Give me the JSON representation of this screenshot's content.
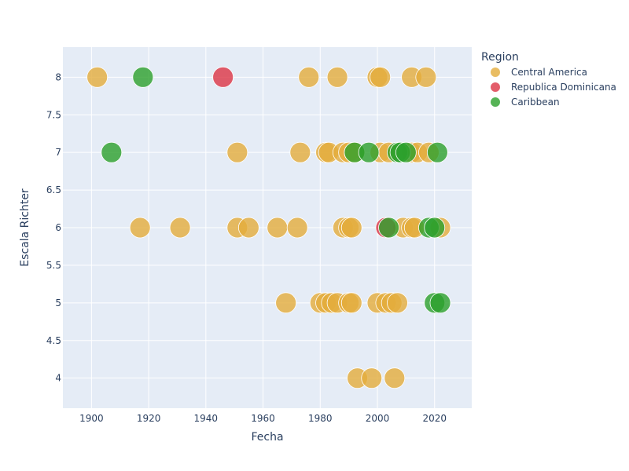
{
  "chart_data": {
    "type": "scatter",
    "title": "",
    "xlabel": "Fecha",
    "ylabel": "Escala Richter",
    "xlim": [
      1890,
      2033
    ],
    "ylim": [
      3.6,
      8.4
    ],
    "x_ticks": [
      1900,
      1920,
      1940,
      1960,
      1980,
      2000,
      2020
    ],
    "y_ticks": [
      4,
      4.5,
      5,
      5.5,
      6,
      6.5,
      7,
      7.5,
      8
    ],
    "y_tick_labels": [
      "4",
      "4.5",
      "5",
      "5.5",
      "6",
      "6.5",
      "7",
      "7.5",
      "8"
    ],
    "grid": true,
    "legend_position": "top-right",
    "legend_title": "Region",
    "series": [
      {
        "name": "Central America",
        "color": "#e3ac3c",
        "points": [
          {
            "x": 1902,
            "y": 8
          },
          {
            "x": 1976,
            "y": 8
          },
          {
            "x": 1986,
            "y": 8
          },
          {
            "x": 2000,
            "y": 8
          },
          {
            "x": 2001,
            "y": 8
          },
          {
            "x": 2012,
            "y": 8
          },
          {
            "x": 2017,
            "y": 8
          },
          {
            "x": 1951,
            "y": 7
          },
          {
            "x": 1973,
            "y": 7
          },
          {
            "x": 1982,
            "y": 7
          },
          {
            "x": 1983,
            "y": 7
          },
          {
            "x": 1988,
            "y": 7
          },
          {
            "x": 1990,
            "y": 7
          },
          {
            "x": 1992,
            "y": 7
          },
          {
            "x": 2001,
            "y": 7
          },
          {
            "x": 2004,
            "y": 7
          },
          {
            "x": 2012,
            "y": 7
          },
          {
            "x": 2014,
            "y": 7
          },
          {
            "x": 2018,
            "y": 7
          },
          {
            "x": 1917,
            "y": 6
          },
          {
            "x": 1931,
            "y": 6
          },
          {
            "x": 1951,
            "y": 6
          },
          {
            "x": 1955,
            "y": 6
          },
          {
            "x": 1965,
            "y": 6
          },
          {
            "x": 1972,
            "y": 6
          },
          {
            "x": 1988,
            "y": 6
          },
          {
            "x": 1990,
            "y": 6
          },
          {
            "x": 1991,
            "y": 6
          },
          {
            "x": 2009,
            "y": 6
          },
          {
            "x": 2012,
            "y": 6
          },
          {
            "x": 2013,
            "y": 6
          },
          {
            "x": 2022,
            "y": 6
          },
          {
            "x": 1968,
            "y": 5
          },
          {
            "x": 1980,
            "y": 5
          },
          {
            "x": 1982,
            "y": 5
          },
          {
            "x": 1984,
            "y": 5
          },
          {
            "x": 1986,
            "y": 5
          },
          {
            "x": 1990,
            "y": 5
          },
          {
            "x": 1991,
            "y": 5
          },
          {
            "x": 2000,
            "y": 5
          },
          {
            "x": 2003,
            "y": 5
          },
          {
            "x": 2005,
            "y": 5
          },
          {
            "x": 2007,
            "y": 5
          },
          {
            "x": 1993,
            "y": 4
          },
          {
            "x": 1998,
            "y": 4
          },
          {
            "x": 2006,
            "y": 4
          }
        ]
      },
      {
        "name": "Republica Dominicana",
        "color": "#dc3545",
        "points": [
          {
            "x": 1946,
            "y": 8
          },
          {
            "x": 2003,
            "y": 6
          }
        ]
      },
      {
        "name": "Caribbean",
        "color": "#2ca02c",
        "points": [
          {
            "x": 1918,
            "y": 8
          },
          {
            "x": 1907,
            "y": 7
          },
          {
            "x": 1992,
            "y": 7
          },
          {
            "x": 1997,
            "y": 7
          },
          {
            "x": 2007,
            "y": 7
          },
          {
            "x": 2008,
            "y": 7
          },
          {
            "x": 2010,
            "y": 7
          },
          {
            "x": 2021,
            "y": 7
          },
          {
            "x": 2004,
            "y": 6
          },
          {
            "x": 2018,
            "y": 6
          },
          {
            "x": 2020,
            "y": 6
          },
          {
            "x": 2020,
            "y": 5
          },
          {
            "x": 2022,
            "y": 5
          }
        ]
      }
    ]
  }
}
